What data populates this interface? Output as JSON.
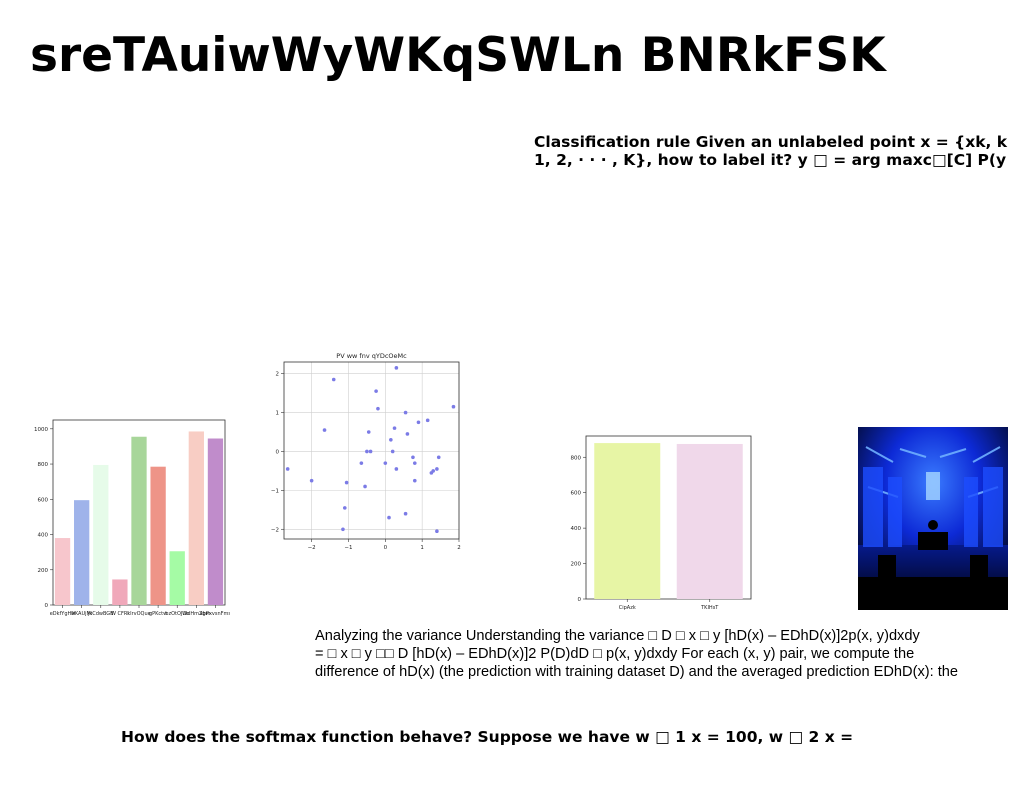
{
  "title": "sreTAuiwWyWKqSWLn BNRkFSK",
  "paragraphs": {
    "top": [
      "Classification rule Given an unlabeled point x = {xk, k",
      "1, 2, · · · , K}, how to label it? y □ = arg maxc□[C] P(y"
    ],
    "mid": [
      "Analyzing the variance Understanding the variance □ D □ x □ y [hD(x) – EDhD(x)]2p(x, y)dxdy",
      "= □ x □ y □□ D [hD(x) – EDhD(x)]2 P(D)dD □ p(x, y)dxdy For each (x, y) pair, we compute the",
      "difference of hD(x) (the prediction with training dataset D) and the averaged prediction EDhD(x): the"
    ],
    "bottom": "How does the softmax function behave? Suppose we have w □ 1 x = 100, w □ 2 x ="
  },
  "chart_data": [
    {
      "type": "bar",
      "title": "",
      "categories": [
        "eDkfYgHw",
        "NKAUjMi",
        "jkCdwBGB",
        "W CFRl",
        "kIrvOQue",
        "gPKctw",
        "bzOtOJUo",
        "WdHmZgm",
        "xbPxvsnFms"
      ],
      "values": [
        380,
        595,
        795,
        145,
        955,
        785,
        305,
        985,
        945
      ],
      "colors": [
        "#f7c6cc",
        "#9fb3ea",
        "#e6fbe9",
        "#f0a8ba",
        "#a8d69a",
        "#ee9488",
        "#a5fba5",
        "#f8cdc4",
        "#c08ccb"
      ],
      "ylim": [
        0,
        1050
      ],
      "yticks": [
        "0",
        "200",
        "400",
        "600",
        "800",
        "1000"
      ],
      "grid": false
    },
    {
      "type": "scatter",
      "title": "PV ww fnv qYDcOeMc",
      "x": [
        -2.65,
        -2.0,
        -1.65,
        -1.4,
        -1.15,
        -1.1,
        -1.05,
        -0.65,
        -0.55,
        -0.5,
        -0.45,
        -0.4,
        -0.25,
        -0.2,
        0.0,
        0.1,
        0.15,
        0.2,
        0.25,
        0.3,
        0.55,
        0.55,
        0.6,
        0.75,
        0.8,
        0.8,
        0.9,
        1.15,
        1.25,
        1.3,
        1.4,
        1.45,
        1.4,
        1.85,
        0.3
      ],
      "y": [
        -0.45,
        -0.75,
        0.55,
        1.85,
        -2.0,
        -1.45,
        -0.8,
        -0.3,
        -0.9,
        0.0,
        0.5,
        0.0,
        1.55,
        1.1,
        -0.3,
        -1.7,
        0.3,
        0.0,
        0.6,
        2.15,
        -1.6,
        1.0,
        0.45,
        -0.15,
        -0.3,
        -0.75,
        0.75,
        0.8,
        -0.55,
        -0.5,
        -0.45,
        -0.15,
        -2.05,
        1.15,
        -0.45
      ],
      "color": "#7b7be6",
      "xlim": [
        -2.75,
        2.0
      ],
      "ylim": [
        -2.25,
        2.3
      ],
      "xticks": [
        "−2",
        "−1",
        "0",
        "1",
        "2"
      ],
      "yticks": [
        "−2",
        "−1",
        "0",
        "1",
        "2"
      ],
      "grid": true
    },
    {
      "type": "bar",
      "title": "",
      "categories": [
        "CipAzk",
        "TKIHsT"
      ],
      "values": [
        880,
        875
      ],
      "colors": [
        "#e7f5a5",
        "#f0d8ea"
      ],
      "ylim": [
        0,
        920
      ],
      "yticks": [
        "0",
        "200",
        "400",
        "600",
        "800"
      ],
      "grid": false
    }
  ],
  "photo": {
    "name": "blue-lit-stage-photo"
  }
}
